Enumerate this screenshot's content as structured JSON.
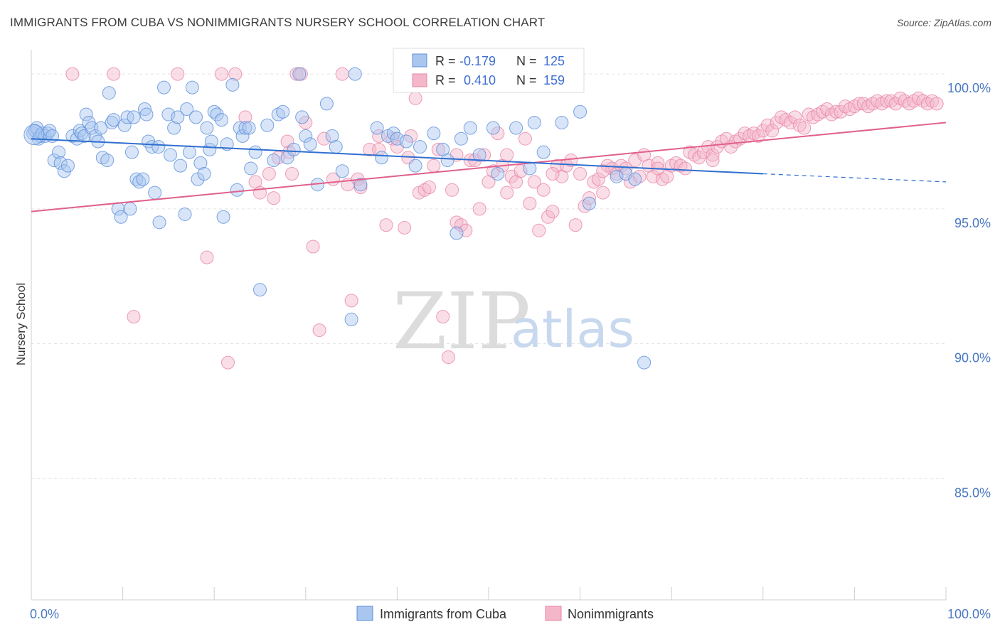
{
  "header": {
    "title": "IMMIGRANTS FROM CUBA VS NONIMMIGRANTS NURSERY SCHOOL CORRELATION CHART",
    "source": "Source: ZipAtlas.com"
  },
  "watermark": {
    "zip": "ZIP",
    "atlas": "atlas"
  },
  "legend": {
    "items": [
      {
        "label": "Immigrants from Cuba",
        "color": "#a9c6ef"
      },
      {
        "label": "Nonimmigrants",
        "color": "#f4b6c9"
      }
    ]
  },
  "stats": {
    "rows": [
      {
        "r_label": "R =",
        "r_value": "-0.179",
        "n_label": "N =",
        "n_value": "125"
      },
      {
        "r_label": "R =",
        "r_value": "0.410",
        "n_label": "N =",
        "n_value": "159"
      }
    ]
  },
  "chart_data": {
    "type": "scatter",
    "title": "IMMIGRANTS FROM CUBA VS NONIMMIGRANTS NURSERY SCHOOL CORRELATION CHART",
    "xlabel": "",
    "ylabel": "Nursery School",
    "xlim": [
      0,
      100
    ],
    "ylim": [
      80.5,
      100.9
    ],
    "x_tick_labels": [
      "0.0%",
      "100.0%"
    ],
    "y_ticks": [
      85,
      90,
      95,
      100
    ],
    "y_tick_labels": [
      "85.0%",
      "90.0%",
      "95.0%",
      "100.0%"
    ],
    "grid": true,
    "legend_position": "bottom",
    "colors": {
      "cuba": "#5b8fd9",
      "cuba_fill": "#a9c6ef",
      "cuba_line": "#2f6fcf",
      "non": "#e884a6",
      "non_fill": "#f4b6c9",
      "non_line": "#e0608c"
    },
    "series": [
      {
        "name": "Immigrants from Cuba",
        "trend": {
          "x": [
            0,
            80,
            100
          ],
          "y": [
            97.6,
            96.3,
            96.0
          ],
          "solid_until": 80
        },
        "points": [
          [
            0.2,
            97.8
          ],
          [
            0.4,
            97.9
          ],
          [
            0.6,
            98.0
          ],
          [
            0.8,
            97.6
          ],
          [
            1.0,
            97.7
          ],
          [
            1.2,
            97.8
          ],
          [
            1.5,
            97.7
          ],
          [
            1.8,
            97.8
          ],
          [
            2.0,
            97.9
          ],
          [
            2.3,
            97.7
          ],
          [
            2.5,
            96.8
          ],
          [
            3.0,
            97.1
          ],
          [
            3.2,
            96.7
          ],
          [
            3.6,
            96.4
          ],
          [
            4.0,
            96.6
          ],
          [
            4.5,
            97.7
          ],
          [
            5.0,
            97.6
          ],
          [
            5.3,
            97.9
          ],
          [
            5.5,
            97.8
          ],
          [
            5.8,
            97.7
          ],
          [
            6.0,
            98.5
          ],
          [
            6.3,
            98.2
          ],
          [
            6.6,
            98.0
          ],
          [
            7.0,
            97.7
          ],
          [
            7.3,
            97.5
          ],
          [
            7.6,
            98.0
          ],
          [
            7.8,
            96.9
          ],
          [
            8.3,
            96.8
          ],
          [
            8.5,
            99.3
          ],
          [
            8.8,
            98.2
          ],
          [
            9.0,
            98.3
          ],
          [
            9.5,
            95.0
          ],
          [
            9.8,
            94.7
          ],
          [
            10.2,
            98.1
          ],
          [
            10.5,
            98.4
          ],
          [
            10.8,
            95.0
          ],
          [
            11.0,
            97.1
          ],
          [
            11.2,
            98.4
          ],
          [
            11.5,
            96.1
          ],
          [
            11.8,
            96.0
          ],
          [
            12.2,
            96.1
          ],
          [
            12.4,
            98.7
          ],
          [
            12.6,
            98.5
          ],
          [
            12.8,
            97.5
          ],
          [
            13.2,
            97.3
          ],
          [
            13.5,
            95.6
          ],
          [
            13.9,
            97.3
          ],
          [
            14.0,
            94.5
          ],
          [
            14.5,
            99.5
          ],
          [
            15.0,
            98.5
          ],
          [
            15.2,
            97.0
          ],
          [
            15.6,
            98.0
          ],
          [
            16.0,
            98.4
          ],
          [
            16.3,
            96.6
          ],
          [
            16.8,
            94.8
          ],
          [
            17.0,
            98.7
          ],
          [
            17.3,
            97.1
          ],
          [
            17.6,
            99.5
          ],
          [
            18.0,
            98.4
          ],
          [
            18.2,
            96.1
          ],
          [
            18.5,
            96.7
          ],
          [
            18.9,
            96.3
          ],
          [
            19.2,
            98.0
          ],
          [
            19.5,
            97.2
          ],
          [
            19.7,
            97.5
          ],
          [
            20.0,
            98.6
          ],
          [
            20.3,
            98.5
          ],
          [
            20.8,
            98.3
          ],
          [
            21.0,
            94.7
          ],
          [
            21.4,
            97.4
          ],
          [
            22.0,
            99.6
          ],
          [
            22.5,
            95.7
          ],
          [
            22.8,
            98.0
          ],
          [
            23.1,
            97.7
          ],
          [
            23.4,
            98.0
          ],
          [
            23.8,
            98.0
          ],
          [
            24.0,
            96.5
          ],
          [
            24.5,
            97.1
          ],
          [
            25.0,
            92.0
          ],
          [
            25.8,
            98.1
          ],
          [
            26.5,
            96.8
          ],
          [
            27.0,
            98.5
          ],
          [
            27.5,
            98.6
          ],
          [
            28.0,
            96.9
          ],
          [
            28.7,
            97.2
          ],
          [
            29.3,
            100.0
          ],
          [
            29.6,
            98.4
          ],
          [
            30.0,
            97.7
          ],
          [
            30.5,
            97.4
          ],
          [
            31.3,
            95.9
          ],
          [
            32.3,
            98.9
          ],
          [
            32.9,
            97.7
          ],
          [
            33.3,
            97.3
          ],
          [
            34.0,
            96.4
          ],
          [
            35.0,
            90.9
          ],
          [
            35.4,
            100.0
          ],
          [
            36.0,
            95.9
          ],
          [
            37.8,
            98.0
          ],
          [
            38.3,
            96.9
          ],
          [
            39.0,
            97.7
          ],
          [
            39.6,
            97.8
          ],
          [
            40.0,
            97.6
          ],
          [
            41.0,
            97.5
          ],
          [
            42.0,
            96.6
          ],
          [
            42.5,
            97.3
          ],
          [
            44.0,
            97.8
          ],
          [
            45.0,
            97.2
          ],
          [
            45.5,
            96.8
          ],
          [
            46.5,
            94.1
          ],
          [
            47.0,
            97.6
          ],
          [
            48.0,
            98.0
          ],
          [
            49.0,
            97.0
          ],
          [
            50.5,
            98.0
          ],
          [
            51.0,
            96.3
          ],
          [
            53.0,
            98.0
          ],
          [
            54.5,
            96.5
          ],
          [
            55.0,
            98.2
          ],
          [
            56.0,
            97.1
          ],
          [
            58.0,
            98.2
          ],
          [
            60.0,
            98.6
          ],
          [
            61.0,
            95.2
          ],
          [
            64.0,
            96.2
          ],
          [
            65.0,
            96.3
          ],
          [
            66.0,
            96.1
          ],
          [
            67.0,
            89.3
          ]
        ]
      },
      {
        "name": "Nonimmigrants",
        "trend": {
          "x": [
            0,
            100
          ],
          "y": [
            94.9,
            98.2
          ]
        },
        "points": [
          [
            4.5,
            100.0
          ],
          [
            9.0,
            100.0
          ],
          [
            11.2,
            91.0
          ],
          [
            16.0,
            100.0
          ],
          [
            19.2,
            93.2
          ],
          [
            20.8,
            100.0
          ],
          [
            21.5,
            89.3
          ],
          [
            22.3,
            100.0
          ],
          [
            23.4,
            98.4
          ],
          [
            24.5,
            96.0
          ],
          [
            25.0,
            95.6
          ],
          [
            26.0,
            96.3
          ],
          [
            26.5,
            95.4
          ],
          [
            27.0,
            96.9
          ],
          [
            28.0,
            97.5
          ],
          [
            28.5,
            96.3
          ],
          [
            29.0,
            100.0
          ],
          [
            29.5,
            100.0
          ],
          [
            30.0,
            98.2
          ],
          [
            30.8,
            93.6
          ],
          [
            31.5,
            90.5
          ],
          [
            32.0,
            97.6
          ],
          [
            33.0,
            96.1
          ],
          [
            34.0,
            100.0
          ],
          [
            34.6,
            95.9
          ],
          [
            35.0,
            91.6
          ],
          [
            35.7,
            96.1
          ],
          [
            36.0,
            95.8
          ],
          [
            37.0,
            97.2
          ],
          [
            38.0,
            97.2
          ],
          [
            38.8,
            94.4
          ],
          [
            39.5,
            97.6
          ],
          [
            40.0,
            97.3
          ],
          [
            40.8,
            94.3
          ],
          [
            41.5,
            97.7
          ],
          [
            42.0,
            99.1
          ],
          [
            42.4,
            95.6
          ],
          [
            43.0,
            95.7
          ],
          [
            43.5,
            95.8
          ],
          [
            44.0,
            96.6
          ],
          [
            44.5,
            97.2
          ],
          [
            45.0,
            91.0
          ],
          [
            45.6,
            89.5
          ],
          [
            46.0,
            95.7
          ],
          [
            46.5,
            94.5
          ],
          [
            47.0,
            94.4
          ],
          [
            47.5,
            94.2
          ],
          [
            48.0,
            96.8
          ],
          [
            48.5,
            96.8
          ],
          [
            49.0,
            95.0
          ],
          [
            49.5,
            97.0
          ],
          [
            50.0,
            96.0
          ],
          [
            50.5,
            96.4
          ],
          [
            51.0,
            97.8
          ],
          [
            51.5,
            96.6
          ],
          [
            52.0,
            95.6
          ],
          [
            52.5,
            96.2
          ],
          [
            53.0,
            96.0
          ],
          [
            53.5,
            96.4
          ],
          [
            54.0,
            97.6
          ],
          [
            54.5,
            95.2
          ],
          [
            55.0,
            96.0
          ],
          [
            55.5,
            94.2
          ],
          [
            56.0,
            95.7
          ],
          [
            56.5,
            94.7
          ],
          [
            57.0,
            94.9
          ],
          [
            57.5,
            96.6
          ],
          [
            58.0,
            96.2
          ],
          [
            58.5,
            96.6
          ],
          [
            59.0,
            96.8
          ],
          [
            59.5,
            94.4
          ],
          [
            60.0,
            96.3
          ],
          [
            60.5,
            95.1
          ],
          [
            61.0,
            95.4
          ],
          [
            61.5,
            96.0
          ],
          [
            62.0,
            96.1
          ],
          [
            62.5,
            95.6
          ],
          [
            63.0,
            96.6
          ],
          [
            63.5,
            96.5
          ],
          [
            64.0,
            96.3
          ],
          [
            64.5,
            96.6
          ],
          [
            65.0,
            96.5
          ],
          [
            65.5,
            96.0
          ],
          [
            66.0,
            96.8
          ],
          [
            66.5,
            96.2
          ],
          [
            67.0,
            97.0
          ],
          [
            67.5,
            96.6
          ],
          [
            68.0,
            96.2
          ],
          [
            68.5,
            96.7
          ],
          [
            69.0,
            96.1
          ],
          [
            69.5,
            96.2
          ],
          [
            70.0,
            96.6
          ],
          [
            70.5,
            96.7
          ],
          [
            71.0,
            96.6
          ],
          [
            71.5,
            96.5
          ],
          [
            72.0,
            97.1
          ],
          [
            72.5,
            97.0
          ],
          [
            73.0,
            96.9
          ],
          [
            73.5,
            97.1
          ],
          [
            74.0,
            97.3
          ],
          [
            74.5,
            97.0
          ],
          [
            75.0,
            97.3
          ],
          [
            75.5,
            97.5
          ],
          [
            76.0,
            97.6
          ],
          [
            76.5,
            97.3
          ],
          [
            77.0,
            97.5
          ],
          [
            77.5,
            97.6
          ],
          [
            78.0,
            97.8
          ],
          [
            78.5,
            97.7
          ],
          [
            79.0,
            97.8
          ],
          [
            79.5,
            97.7
          ],
          [
            80.0,
            97.9
          ],
          [
            80.5,
            98.1
          ],
          [
            81.0,
            97.9
          ],
          [
            81.5,
            98.2
          ],
          [
            82.0,
            98.4
          ],
          [
            82.5,
            98.3
          ],
          [
            83.0,
            98.2
          ],
          [
            83.5,
            98.4
          ],
          [
            84.0,
            98.1
          ],
          [
            84.5,
            98.0
          ],
          [
            85.0,
            98.5
          ],
          [
            85.5,
            98.4
          ],
          [
            86.0,
            98.5
          ],
          [
            86.5,
            98.6
          ],
          [
            87.0,
            98.7
          ],
          [
            87.5,
            98.5
          ],
          [
            88.0,
            98.6
          ],
          [
            88.5,
            98.6
          ],
          [
            89.0,
            98.8
          ],
          [
            89.5,
            98.7
          ],
          [
            90.0,
            98.8
          ],
          [
            90.5,
            98.9
          ],
          [
            91.0,
            98.9
          ],
          [
            91.5,
            98.8
          ],
          [
            92.0,
            98.9
          ],
          [
            92.5,
            99.0
          ],
          [
            93.0,
            98.9
          ],
          [
            93.5,
            99.0
          ],
          [
            94.0,
            99.0
          ],
          [
            94.5,
            98.9
          ],
          [
            95.0,
            99.1
          ],
          [
            95.5,
            99.0
          ],
          [
            96.0,
            98.9
          ],
          [
            96.5,
            99.0
          ],
          [
            97.0,
            99.1
          ],
          [
            97.5,
            99.0
          ],
          [
            98.0,
            98.9
          ],
          [
            98.5,
            99.0
          ],
          [
            99.0,
            98.9
          ],
          [
            28.2,
            97.1
          ],
          [
            38.0,
            97.7
          ],
          [
            41.2,
            96.9
          ],
          [
            46.5,
            97.0
          ],
          [
            52.0,
            97.0
          ],
          [
            57.0,
            96.3
          ],
          [
            62.5,
            96.4
          ],
          [
            68.5,
            96.5
          ],
          [
            74.5,
            96.8
          ]
        ]
      }
    ]
  }
}
